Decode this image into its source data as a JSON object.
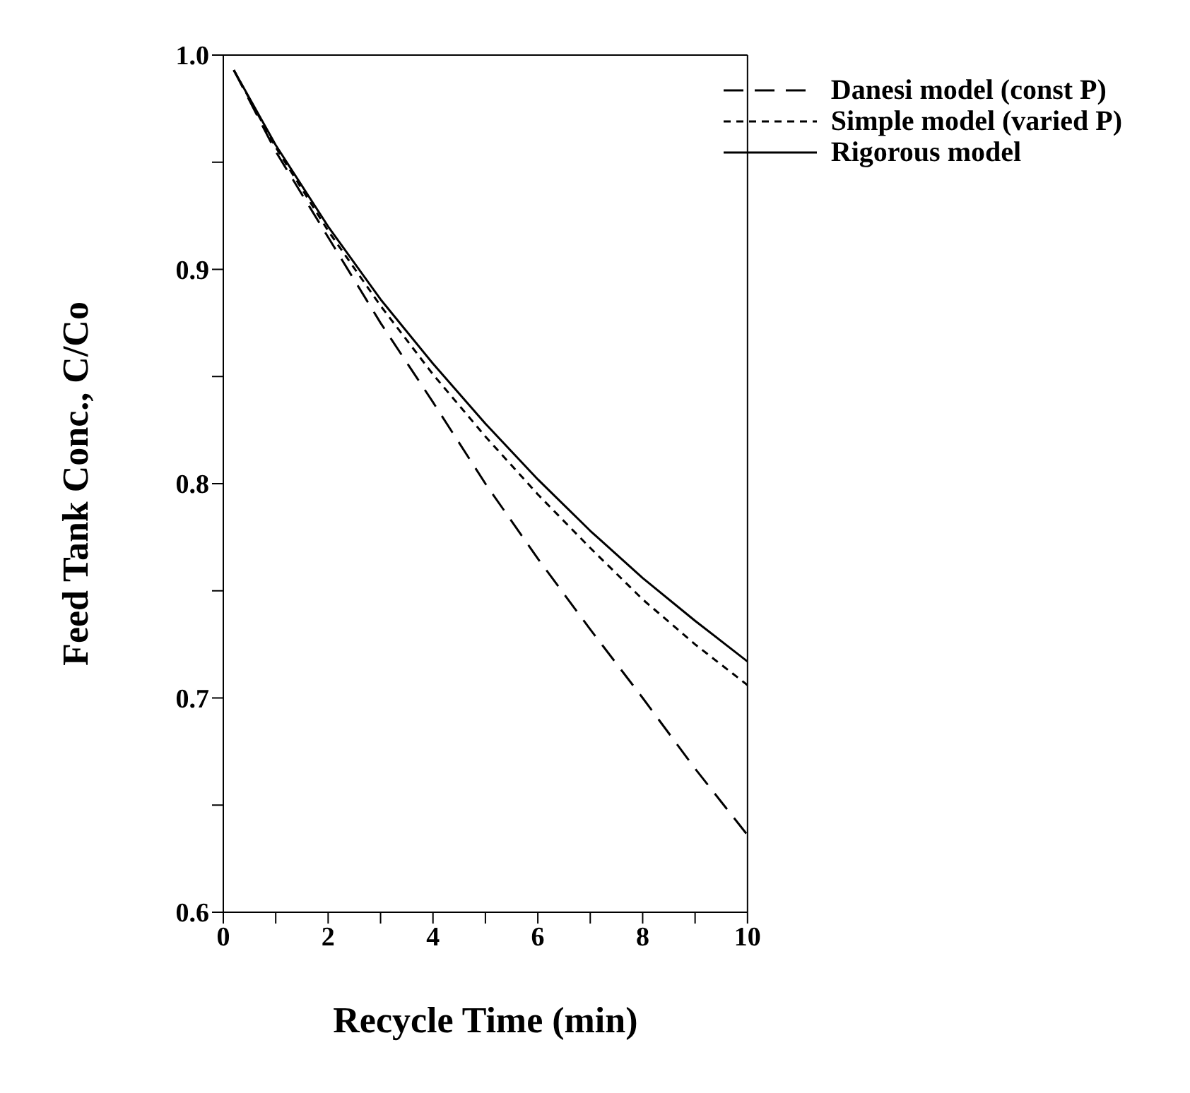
{
  "chart_data": {
    "type": "line",
    "xlabel": "Recycle Time (min)",
    "ylabel": "Feed Tank Conc., C/Co",
    "x": [
      0.2,
      1,
      2,
      3,
      4,
      5,
      6,
      7,
      8,
      9,
      10
    ],
    "series": [
      {
        "name": "Danesi model (const P)",
        "color": "#000000",
        "line_style": "dashed",
        "values": [
          0.993,
          0.955,
          0.915,
          0.875,
          0.838,
          0.8,
          0.765,
          0.732,
          0.7,
          0.667,
          0.636
        ]
      },
      {
        "name": "Simple model (varied P)",
        "color": "#000000",
        "line_style": "dotted",
        "values": [
          0.993,
          0.957,
          0.918,
          0.883,
          0.851,
          0.822,
          0.795,
          0.77,
          0.746,
          0.725,
          0.706
        ]
      },
      {
        "name": "Rigorous model",
        "color": "#000000",
        "line_style": "solid",
        "values": [
          0.993,
          0.958,
          0.92,
          0.886,
          0.856,
          0.828,
          0.802,
          0.778,
          0.756,
          0.736,
          0.717
        ]
      }
    ],
    "xlim": [
      0,
      10
    ],
    "xticks": [
      0,
      {
        "value": 1,
        "label": null
      },
      2,
      {
        "value": 3,
        "label": null
      },
      4,
      {
        "value": 5,
        "label": null
      },
      6,
      {
        "value": 7,
        "label": null
      },
      8,
      {
        "value": 9,
        "label": null
      },
      10
    ],
    "ylim": [
      0.6,
      1.0
    ],
    "yticks": [
      0.6,
      {
        "value": 0.65,
        "label": null
      },
      0.7,
      {
        "value": 0.75,
        "label": null
      },
      0.8,
      {
        "value": 0.85,
        "label": null
      },
      0.9,
      {
        "value": 0.95,
        "label": null
      },
      {
        "value": 1.0,
        "label": "1.0"
      }
    ],
    "grid": false,
    "legend": "top right",
    "marker": "none"
  }
}
